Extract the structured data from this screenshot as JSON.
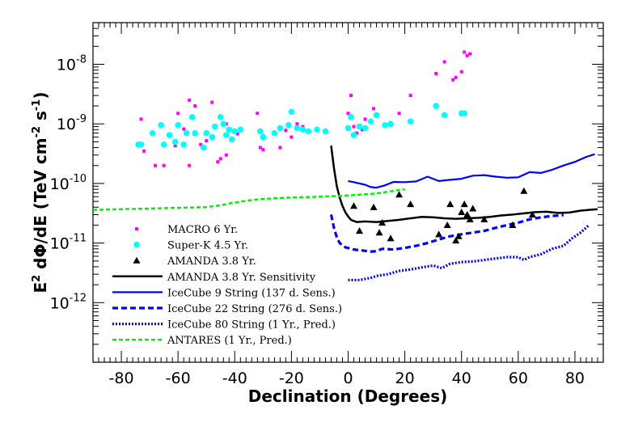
{
  "chart_data": {
    "type": "scatter",
    "xlabel": "Declination (Degrees)",
    "ylabel": "E2 dΦ/dE (TeV cm-2 s-1)",
    "xlim": [
      -90,
      90
    ],
    "ylim": [
      1e-13,
      5e-08
    ],
    "yscale": "log",
    "x_ticks": [
      -80,
      -60,
      -40,
      -20,
      0,
      20,
      40,
      60,
      80
    ],
    "x_tick_labels": [
      "-80",
      "-60",
      "-40",
      "-20",
      "0",
      "20",
      "40",
      "60",
      "80"
    ],
    "y_ticks": [
      {
        "value": 1e-12,
        "base": "10",
        "exp": "-12"
      },
      {
        "value": 1e-11,
        "base": "10",
        "exp": "-11"
      },
      {
        "value": 1e-10,
        "base": "10",
        "exp": "-10"
      },
      {
        "value": 1e-09,
        "base": "10",
        "exp": "-9"
      },
      {
        "value": 1e-08,
        "base": "10",
        "exp": "-8"
      }
    ],
    "legend": {
      "placement": "center-left",
      "entries": [
        {
          "label": "MACRO 6 Yr.",
          "series": "macro"
        },
        {
          "label": "Super-K 4.5 Yr.",
          "series": "superk"
        },
        {
          "label": "AMANDA 3.8 Yr.",
          "series": "amanda"
        },
        {
          "label": "AMANDA 3.8 Yr. Sensitivity",
          "series": "amanda_sens"
        },
        {
          "label": "IceCube 9 String (137 d. Sens.)",
          "series": "ic9"
        },
        {
          "label": "IceCube 22 String (276 d. Sens.)",
          "series": "ic22"
        },
        {
          "label": "IceCube 80 String (1 Yr., Pred.)",
          "series": "ic80"
        },
        {
          "label": "ANTARES (1 Yr., Pred.)",
          "series": "antares"
        }
      ]
    },
    "series": [
      {
        "name": "macro",
        "kind": "points",
        "marker": "square",
        "color": "#ff00ff",
        "points": [
          [
            -73,
            1.2e-09
          ],
          [
            -72,
            3.5e-10
          ],
          [
            -68,
            2e-10
          ],
          [
            -65,
            2e-10
          ],
          [
            -61,
            4.3e-10
          ],
          [
            -60,
            1.5e-09
          ],
          [
            -58,
            8.2e-10
          ],
          [
            -56,
            2e-10
          ],
          [
            -56,
            2.5e-09
          ],
          [
            -54,
            2e-09
          ],
          [
            -52,
            4.5e-10
          ],
          [
            -50,
            5.2e-10
          ],
          [
            -48,
            2.3e-09
          ],
          [
            -46,
            2.3e-10
          ],
          [
            -45,
            2.6e-10
          ],
          [
            -43,
            3e-10
          ],
          [
            -43,
            1e-09
          ],
          [
            -39,
            6.8e-10
          ],
          [
            -32,
            1.5e-09
          ],
          [
            -31,
            4e-10
          ],
          [
            -30,
            3.7e-10
          ],
          [
            -26,
            7e-10
          ],
          [
            -24,
            4e-10
          ],
          [
            -22,
            7.8e-10
          ],
          [
            -20,
            6e-10
          ],
          [
            -18,
            1e-09
          ],
          [
            -16,
            9e-10
          ],
          [
            0,
            1.5e-09
          ],
          [
            1,
            3e-09
          ],
          [
            2,
            9e-10
          ],
          [
            3,
            7e-10
          ],
          [
            5,
            8e-10
          ],
          [
            6,
            1.2e-09
          ],
          [
            8,
            1.1e-09
          ],
          [
            9,
            1.8e-09
          ],
          [
            15,
            9.5e-10
          ],
          [
            18,
            1.5e-09
          ],
          [
            22,
            3e-09
          ],
          [
            31,
            7e-09
          ],
          [
            34,
            1.1e-08
          ],
          [
            37,
            5.5e-09
          ],
          [
            38,
            6e-09
          ],
          [
            40,
            7.5e-09
          ],
          [
            41,
            1.6e-08
          ],
          [
            42,
            1.4e-08
          ],
          [
            43,
            1.5e-08
          ]
        ]
      },
      {
        "name": "superk",
        "kind": "points",
        "marker": "circle",
        "color": "#00ffff",
        "points": [
          [
            -74,
            4.5e-10
          ],
          [
            -73,
            4.5e-10
          ],
          [
            -69,
            7e-10
          ],
          [
            -66,
            9.5e-10
          ],
          [
            -65,
            4.5e-10
          ],
          [
            -63,
            6.5e-10
          ],
          [
            -61,
            5e-10
          ],
          [
            -60,
            9.5e-10
          ],
          [
            -58,
            4.5e-10
          ],
          [
            -57,
            7e-10
          ],
          [
            -55,
            1.3e-09
          ],
          [
            -54,
            7e-10
          ],
          [
            -51,
            4e-10
          ],
          [
            -50,
            7e-10
          ],
          [
            -48,
            6e-10
          ],
          [
            -47,
            9e-10
          ],
          [
            -45,
            1.3e-09
          ],
          [
            -44,
            1e-09
          ],
          [
            -43,
            6.5e-10
          ],
          [
            -42,
            8e-10
          ],
          [
            -41,
            5.5e-10
          ],
          [
            -40,
            7.5e-10
          ],
          [
            -38,
            8e-10
          ],
          [
            -31,
            7.5e-10
          ],
          [
            -30,
            6e-10
          ],
          [
            -26,
            7e-10
          ],
          [
            -24,
            8.5e-10
          ],
          [
            -21,
            9.5e-10
          ],
          [
            -20,
            1.6e-09
          ],
          [
            -18,
            8.5e-10
          ],
          [
            -16,
            8e-10
          ],
          [
            -14,
            7.5e-10
          ],
          [
            -11,
            8e-10
          ],
          [
            -8,
            7.5e-10
          ],
          [
            0,
            8.5e-10
          ],
          [
            1,
            1.3e-09
          ],
          [
            2,
            6.5e-10
          ],
          [
            4,
            9e-10
          ],
          [
            6,
            8.5e-10
          ],
          [
            8,
            1.1e-09
          ],
          [
            10,
            1.4e-09
          ],
          [
            13,
            9.5e-10
          ],
          [
            15,
            1e-09
          ],
          [
            22,
            1.1e-09
          ],
          [
            31,
            2e-09
          ],
          [
            34,
            1.4e-09
          ],
          [
            40,
            1.5e-09
          ],
          [
            41,
            1.5e-09
          ]
        ]
      },
      {
        "name": "amanda",
        "kind": "points",
        "marker": "triangle",
        "color": "#000000",
        "points": [
          [
            2,
            4.2e-11
          ],
          [
            4,
            1.6e-11
          ],
          [
            9,
            4e-11
          ],
          [
            11,
            1.5e-11
          ],
          [
            12,
            2.2e-11
          ],
          [
            15,
            1.2e-11
          ],
          [
            18,
            6.5e-11
          ],
          [
            22,
            4.5e-11
          ],
          [
            32,
            1.4e-11
          ],
          [
            35,
            2e-11
          ],
          [
            36,
            4.5e-11
          ],
          [
            38,
            1.1e-11
          ],
          [
            39,
            1.3e-11
          ],
          [
            40,
            3.3e-11
          ],
          [
            41,
            4.5e-11
          ],
          [
            42,
            3e-11
          ],
          [
            43,
            2.5e-11
          ],
          [
            44,
            3.8e-11
          ],
          [
            48,
            2.5e-11
          ],
          [
            58,
            2e-11
          ],
          [
            62,
            7.5e-11
          ],
          [
            65,
            3e-11
          ]
        ]
      },
      {
        "name": "amanda_sens",
        "kind": "line",
        "style": "solid",
        "color": "#000000",
        "width": 2.5,
        "points": [
          [
            -6,
            4.3e-10
          ],
          [
            -5,
            1.8e-10
          ],
          [
            -4,
            9e-11
          ],
          [
            -3,
            5.8e-11
          ],
          [
            -2,
            4.2e-11
          ],
          [
            -1,
            3.3e-11
          ],
          [
            0,
            2.8e-11
          ],
          [
            1,
            2.45e-11
          ],
          [
            3,
            2.25e-11
          ],
          [
            6,
            2.3e-11
          ],
          [
            10,
            2.25e-11
          ],
          [
            14,
            2.35e-11
          ],
          [
            18,
            2.45e-11
          ],
          [
            22,
            2.6e-11
          ],
          [
            26,
            2.75e-11
          ],
          [
            30,
            2.7e-11
          ],
          [
            34,
            2.6e-11
          ],
          [
            38,
            2.55e-11
          ],
          [
            42,
            2.6e-11
          ],
          [
            46,
            2.65e-11
          ],
          [
            50,
            2.75e-11
          ],
          [
            54,
            2.9e-11
          ],
          [
            58,
            3e-11
          ],
          [
            62,
            3.15e-11
          ],
          [
            66,
            3.3e-11
          ],
          [
            70,
            3.35e-11
          ],
          [
            74,
            3.2e-11
          ],
          [
            78,
            3.25e-11
          ],
          [
            82,
            3.5e-11
          ],
          [
            86,
            3.65e-11
          ],
          [
            88,
            3.7e-11
          ]
        ]
      },
      {
        "name": "ic9",
        "kind": "line",
        "style": "solid",
        "color": "#0000ff",
        "width": 2.2,
        "points": [
          [
            0,
            1.1e-10
          ],
          [
            2,
            1.05e-10
          ],
          [
            6,
            9.5e-11
          ],
          [
            8,
            8.7e-11
          ],
          [
            10,
            8.5e-11
          ],
          [
            13,
            9.3e-11
          ],
          [
            16,
            1.06e-10
          ],
          [
            20,
            1.05e-10
          ],
          [
            24,
            1.08e-10
          ],
          [
            28,
            1.3e-10
          ],
          [
            32,
            1.1e-10
          ],
          [
            36,
            1.15e-10
          ],
          [
            40,
            1.2e-10
          ],
          [
            44,
            1.35e-10
          ],
          [
            48,
            1.38e-10
          ],
          [
            52,
            1.3e-10
          ],
          [
            56,
            1.25e-10
          ],
          [
            60,
            1.27e-10
          ],
          [
            64,
            1.55e-10
          ],
          [
            68,
            1.5e-10
          ],
          [
            72,
            1.7e-10
          ],
          [
            76,
            2e-10
          ],
          [
            80,
            2.3e-10
          ],
          [
            84,
            2.8e-10
          ],
          [
            87,
            3.1e-10
          ]
        ]
      },
      {
        "name": "ic22",
        "kind": "line",
        "style": "dashed",
        "color": "#0000ff",
        "width": 3.2,
        "points": [
          [
            -6,
            3e-11
          ],
          [
            -5,
            1.8e-11
          ],
          [
            -4,
            1.25e-11
          ],
          [
            -3,
            1e-11
          ],
          [
            -1,
            8.5e-12
          ],
          [
            2,
            7.8e-12
          ],
          [
            5,
            7.5e-12
          ],
          [
            8,
            7.2e-12
          ],
          [
            10,
            7.3e-12
          ],
          [
            12,
            8e-12
          ],
          [
            16,
            7.8e-12
          ],
          [
            20,
            8.3e-12
          ],
          [
            24,
            9e-12
          ],
          [
            28,
            1e-11
          ],
          [
            32,
            1.15e-11
          ],
          [
            36,
            1.3e-11
          ],
          [
            40,
            1.4e-11
          ],
          [
            44,
            1.5e-11
          ],
          [
            48,
            1.6e-11
          ],
          [
            52,
            1.8e-11
          ],
          [
            56,
            2e-11
          ],
          [
            60,
            2.2e-11
          ],
          [
            64,
            2.5e-11
          ],
          [
            68,
            2.7e-11
          ],
          [
            72,
            2.85e-11
          ],
          [
            76,
            2.95e-11
          ]
        ]
      },
      {
        "name": "ic80",
        "kind": "line",
        "style": "dotted",
        "color": "#0000ff",
        "width": 3.2,
        "points": [
          [
            0,
            2.4e-12
          ],
          [
            4,
            2.4e-12
          ],
          [
            8,
            2.6e-12
          ],
          [
            10,
            2.8e-12
          ],
          [
            14,
            3e-12
          ],
          [
            18,
            3.4e-12
          ],
          [
            22,
            3.6e-12
          ],
          [
            26,
            3.9e-12
          ],
          [
            30,
            4.2e-12
          ],
          [
            33,
            3.8e-12
          ],
          [
            36,
            4.5e-12
          ],
          [
            40,
            4.8e-12
          ],
          [
            44,
            4.9e-12
          ],
          [
            48,
            5.2e-12
          ],
          [
            52,
            5.5e-12
          ],
          [
            56,
            5.8e-12
          ],
          [
            60,
            5.8e-12
          ],
          [
            62,
            5.2e-12
          ],
          [
            64,
            5.8e-12
          ],
          [
            68,
            6.5e-12
          ],
          [
            72,
            8e-12
          ],
          [
            76,
            9e-12
          ],
          [
            79,
            1.2e-11
          ],
          [
            82,
            1.5e-11
          ],
          [
            85,
            2e-11
          ]
        ]
      },
      {
        "name": "antares",
        "kind": "line",
        "style": "dashed-fine",
        "color": "#00ee00",
        "width": 2.4,
        "points": [
          [
            -90,
            3.6e-11
          ],
          [
            -80,
            3.7e-11
          ],
          [
            -70,
            3.8e-11
          ],
          [
            -60,
            3.9e-11
          ],
          [
            -50,
            4e-11
          ],
          [
            -45,
            4.3e-11
          ],
          [
            -40,
            4.8e-11
          ],
          [
            -35,
            5.2e-11
          ],
          [
            -30,
            5.5e-11
          ],
          [
            -20,
            5.8e-11
          ],
          [
            -10,
            6e-11
          ],
          [
            0,
            6.3e-11
          ],
          [
            10,
            6.8e-11
          ],
          [
            15,
            7.4e-11
          ],
          [
            20,
            8e-11
          ]
        ]
      }
    ]
  }
}
